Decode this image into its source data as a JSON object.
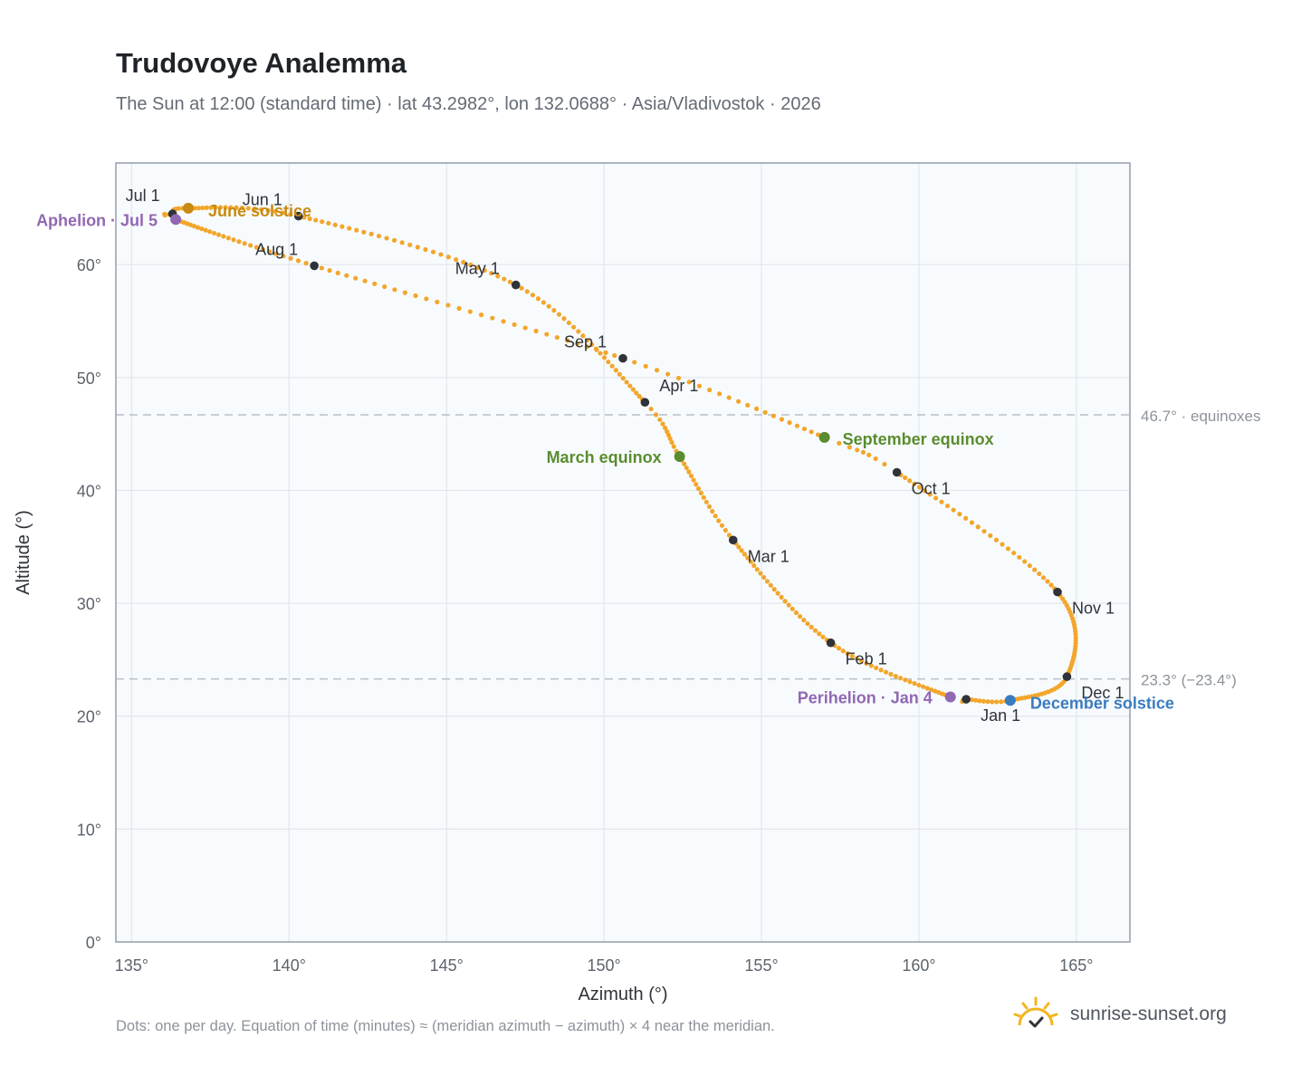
{
  "header": {
    "title": "Trudovoye Analemma",
    "subtitle": "The Sun at 12:00 (standard time) · lat 43.2982°, lon 132.0688° · Asia/Vladivostok · 2026"
  },
  "footer": {
    "note": "Dots: one per day. Equation of time (minutes) ≈ (meridian azimuth − azimuth) × 4 near the meridian.",
    "brand": "sunrise-sunset.org"
  },
  "colors": {
    "curve": "#f2a62c",
    "month_marker": "#2f3339",
    "solstice_june": "#c88a12",
    "solstice_december": "#3b7cc0",
    "equinox": "#5a8c2f",
    "apsis": "#9168b3",
    "plot_bg": "#f8fbfd",
    "grid": "#e1e6ec",
    "reference_line": "#b7c0ca"
  },
  "chart_data": {
    "type": "scatter",
    "xlabel": "Azimuth (°)",
    "ylabel": "Altitude (°)",
    "xlim": [
      134.5,
      166.7
    ],
    "ylim": [
      0,
      69
    ],
    "xticks": [
      135,
      140,
      145,
      150,
      155,
      160,
      165
    ],
    "xtick_labels": [
      "135°",
      "140°",
      "145°",
      "150°",
      "155°",
      "160°",
      "165°"
    ],
    "yticks": [
      0,
      10,
      20,
      30,
      40,
      50,
      60
    ],
    "ytick_labels": [
      "0°",
      "10°",
      "20°",
      "30°",
      "40°",
      "50°",
      "60°"
    ],
    "grid": true,
    "series": [
      {
        "points_per_day": true,
        "anchors": [
          {
            "date": "Jan 1",
            "azimuth": 161.5,
            "altitude": 21.5
          },
          {
            "date": "Jan 4",
            "azimuth": 161.0,
            "altitude": 21.7
          },
          {
            "date": "Feb 1",
            "azimuth": 157.2,
            "altitude": 26.5
          },
          {
            "date": "Mar 1",
            "azimuth": 154.1,
            "altitude": 35.6
          },
          {
            "date": "Mar 20",
            "azimuth": 152.4,
            "altitude": 43.0
          },
          {
            "date": "Apr 1",
            "azimuth": 151.3,
            "altitude": 47.8
          },
          {
            "date": "May 1",
            "azimuth": 147.2,
            "altitude": 58.2
          },
          {
            "date": "Jun 1",
            "azimuth": 140.3,
            "altitude": 64.3
          },
          {
            "date": "Jun 21",
            "azimuth": 136.8,
            "altitude": 65.0
          },
          {
            "date": "Jul 1",
            "azimuth": 136.3,
            "altitude": 64.5
          },
          {
            "date": "Jul 5",
            "azimuth": 136.4,
            "altitude": 64.0
          },
          {
            "date": "Aug 1",
            "azimuth": 140.8,
            "altitude": 59.9
          },
          {
            "date": "Sep 1",
            "azimuth": 150.6,
            "altitude": 51.7
          },
          {
            "date": "Sep 23",
            "azimuth": 157.0,
            "altitude": 44.7
          },
          {
            "date": "Oct 1",
            "azimuth": 159.3,
            "altitude": 41.6
          },
          {
            "date": "Nov 1",
            "azimuth": 164.4,
            "altitude": 31.0
          },
          {
            "date": "Dec 1",
            "azimuth": 164.7,
            "altitude": 23.5
          },
          {
            "date": "Dec 21",
            "azimuth": 162.9,
            "altitude": 21.4
          }
        ]
      }
    ],
    "month_markers": [
      {
        "label": "Jan 1",
        "azimuth": 161.5,
        "altitude": 21.5
      },
      {
        "label": "Feb 1",
        "azimuth": 157.2,
        "altitude": 26.5
      },
      {
        "label": "Mar 1",
        "azimuth": 154.1,
        "altitude": 35.6
      },
      {
        "label": "Apr 1",
        "azimuth": 151.3,
        "altitude": 47.8
      },
      {
        "label": "May 1",
        "azimuth": 147.2,
        "altitude": 58.2
      },
      {
        "label": "Jun 1",
        "azimuth": 140.3,
        "altitude": 64.3
      },
      {
        "label": "Jul 1",
        "azimuth": 136.3,
        "altitude": 64.5
      },
      {
        "label": "Aug 1",
        "azimuth": 140.8,
        "altitude": 59.9
      },
      {
        "label": "Sep 1",
        "azimuth": 150.6,
        "altitude": 51.7
      },
      {
        "label": "Oct 1",
        "azimuth": 159.3,
        "altitude": 41.6
      },
      {
        "label": "Nov 1",
        "azimuth": 164.4,
        "altitude": 31.0
      },
      {
        "label": "Dec 1",
        "azimuth": 164.7,
        "altitude": 23.5
      }
    ],
    "events": [
      {
        "label": "June solstice",
        "azimuth": 136.8,
        "altitude": 65.0,
        "kind": "solstice_june"
      },
      {
        "label": "December solstice",
        "azimuth": 162.9,
        "altitude": 21.4,
        "kind": "solstice_december"
      },
      {
        "label": "March equinox",
        "azimuth": 152.4,
        "altitude": 43.0,
        "kind": "equinox"
      },
      {
        "label": "September equinox",
        "azimuth": 157.0,
        "altitude": 44.7,
        "kind": "equinox"
      },
      {
        "label": "Aphelion · Jul 5",
        "azimuth": 136.4,
        "altitude": 64.0,
        "kind": "apsis"
      },
      {
        "label": "Perihelion · Jan 4",
        "azimuth": 161.0,
        "altitude": 21.7,
        "kind": "apsis"
      }
    ],
    "reference_lines": [
      {
        "altitude": 46.7,
        "label": "46.7° · equinoxes"
      },
      {
        "altitude": 23.3,
        "label": "23.3° (−23.4°)"
      }
    ]
  }
}
